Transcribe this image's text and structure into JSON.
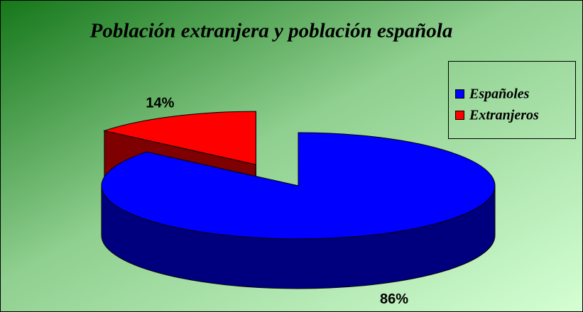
{
  "chart_data": {
    "type": "pie3d",
    "title": "Población extranjera y población española",
    "categories": [
      "Españoles",
      "Extranjeros"
    ],
    "values": [
      86,
      14
    ],
    "value_labels": [
      "86%",
      "14%"
    ],
    "colors": [
      "#0000ff",
      "#ff0000"
    ],
    "legend": "right"
  }
}
